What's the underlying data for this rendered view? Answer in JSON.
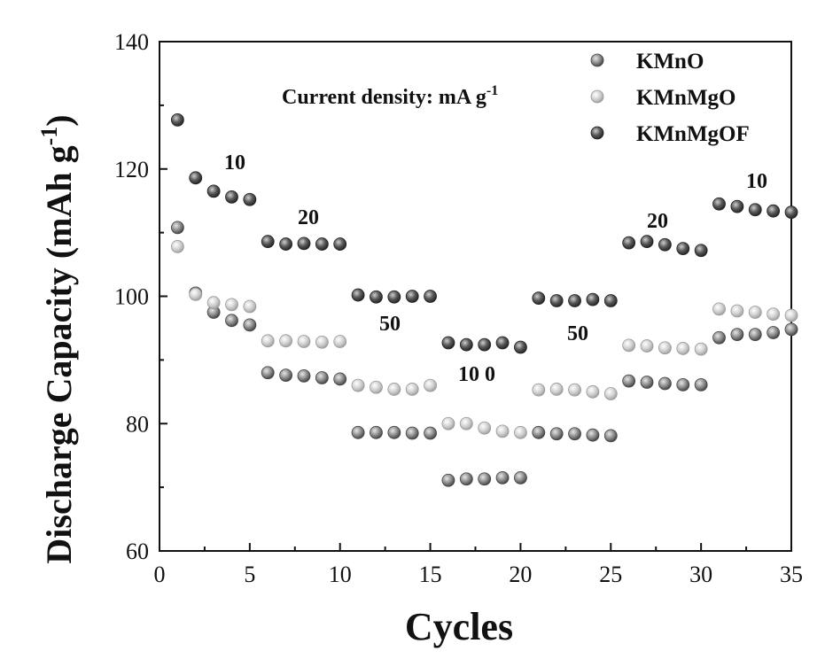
{
  "chart_data": {
    "type": "scatter",
    "xlabel": "Cycles",
    "ylabel": "Discharge Capacity (mAh g",
    "ylabel_sup": "-1",
    "ylabel_close": ")",
    "xlim": [
      0,
      35
    ],
    "ylim": [
      60,
      140
    ],
    "xticks": [
      0,
      5,
      10,
      15,
      20,
      25,
      30,
      35
    ],
    "yticks": [
      60,
      80,
      100,
      120,
      140
    ],
    "legend_position": "top-right",
    "current_density_label": "Current density: mA g",
    "current_density_sup": "-1",
    "rate_annotations": [
      "10",
      "20",
      "50",
      "10 0",
      "50",
      "20",
      "10"
    ],
    "x": [
      1,
      2,
      3,
      4,
      5,
      6,
      7,
      8,
      9,
      10,
      11,
      12,
      13,
      14,
      15,
      16,
      17,
      18,
      19,
      20,
      21,
      22,
      23,
      24,
      25,
      26,
      27,
      28,
      29,
      30,
      31,
      32,
      33,
      34,
      35
    ],
    "series": [
      {
        "name": "KMnO",
        "color": "#808080",
        "values": [
          110.8,
          100.5,
          97.5,
          96.2,
          95.5,
          88.0,
          87.6,
          87.5,
          87.2,
          87.0,
          78.6,
          78.6,
          78.6,
          78.5,
          78.5,
          71.1,
          71.3,
          71.3,
          71.5,
          71.5,
          78.6,
          78.4,
          78.4,
          78.2,
          78.1,
          86.7,
          86.5,
          86.3,
          86.1,
          86.1,
          93.5,
          94.0,
          94.0,
          94.3,
          94.8
        ]
      },
      {
        "name": "KMnMgO",
        "color": "#c4c4c4",
        "values": [
          107.8,
          100.3,
          99.0,
          98.7,
          98.4,
          93.0,
          93.0,
          92.9,
          92.8,
          92.9,
          86.0,
          85.7,
          85.4,
          85.4,
          86.0,
          80.0,
          80.0,
          79.3,
          78.8,
          78.6,
          85.3,
          85.4,
          85.3,
          85.0,
          84.7,
          92.3,
          92.2,
          91.9,
          91.8,
          91.7,
          98.0,
          97.7,
          97.5,
          97.2,
          97.0
        ]
      },
      {
        "name": "KMnMgOF",
        "color": "#5e5e5e",
        "values": [
          127.7,
          118.6,
          116.5,
          115.6,
          115.2,
          108.6,
          108.2,
          108.3,
          108.2,
          108.2,
          100.2,
          99.9,
          99.9,
          100.0,
          100.0,
          92.7,
          92.4,
          92.4,
          92.7,
          92.0,
          99.7,
          99.3,
          99.3,
          99.5,
          99.3,
          108.4,
          108.6,
          108.1,
          107.5,
          107.2,
          114.5,
          114.1,
          113.6,
          113.4,
          113.2
        ]
      }
    ]
  }
}
